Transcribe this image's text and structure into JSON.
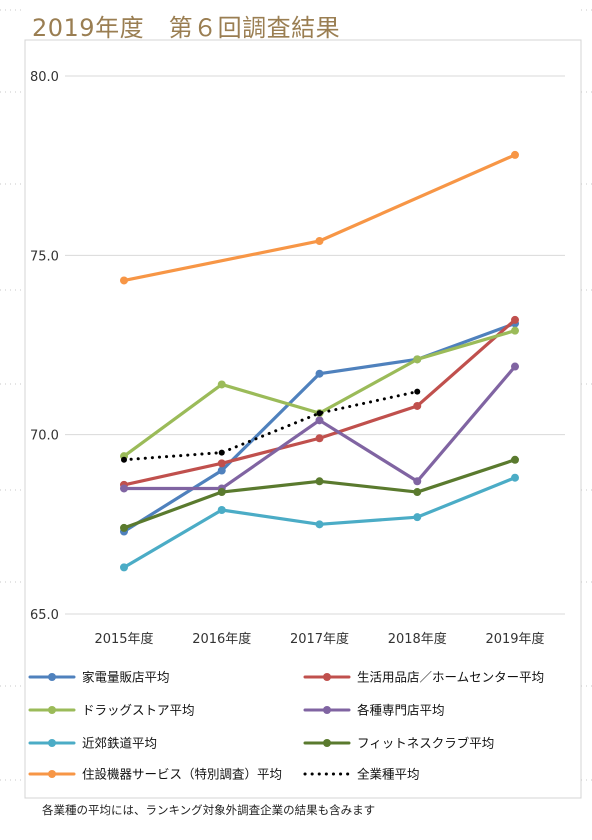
{
  "title": "2019年度　第６回調査結果",
  "footnote": "各業種の平均には、ランキング対象外調査企業の結果も含みます",
  "chart_data": {
    "type": "line",
    "title": "2019年度　第６回調査結果",
    "xlabel": "",
    "ylabel": "",
    "categories": [
      "2015年度",
      "2016年度",
      "2017年度",
      "2018年度",
      "2019年度"
    ],
    "ylim": [
      65.0,
      80.0
    ],
    "yticks": [
      "65.0",
      "70.0",
      "75.0",
      "80.0"
    ],
    "grid": true,
    "legend_position": "bottom",
    "series": [
      {
        "name": "家電量販店平均",
        "color": "#4f81bd",
        "style": "solid",
        "values": [
          67.3,
          69.0,
          71.7,
          72.1,
          73.1
        ]
      },
      {
        "name": "生活用品店／ホームセンター平均",
        "color": "#c0504d",
        "style": "solid",
        "values": [
          68.6,
          69.2,
          69.9,
          70.8,
          73.2
        ]
      },
      {
        "name": "ドラッグストア平均",
        "color": "#9bbb59",
        "style": "solid",
        "values": [
          69.4,
          71.4,
          70.6,
          72.1,
          72.9
        ]
      },
      {
        "name": "各種専門店平均",
        "color": "#8064a2",
        "style": "solid",
        "values": [
          68.5,
          68.5,
          70.4,
          68.7,
          71.9
        ]
      },
      {
        "name": "近郊鉄道平均",
        "color": "#4bacc6",
        "style": "solid",
        "values": [
          66.3,
          67.9,
          67.5,
          67.7,
          68.8
        ]
      },
      {
        "name": "フィットネスクラブ平均",
        "color": "#5a7a2e",
        "style": "solid",
        "values": [
          67.4,
          68.4,
          68.7,
          68.4,
          69.3
        ]
      },
      {
        "name": "住設機器サービス（特別調査）平均",
        "color": "#f79646",
        "style": "solid",
        "values": [
          74.3,
          null,
          75.4,
          null,
          77.8
        ]
      },
      {
        "name": "全業種平均",
        "color": "#000000",
        "style": "dotted",
        "values": [
          69.3,
          69.5,
          70.6,
          71.2,
          null
        ]
      }
    ]
  }
}
